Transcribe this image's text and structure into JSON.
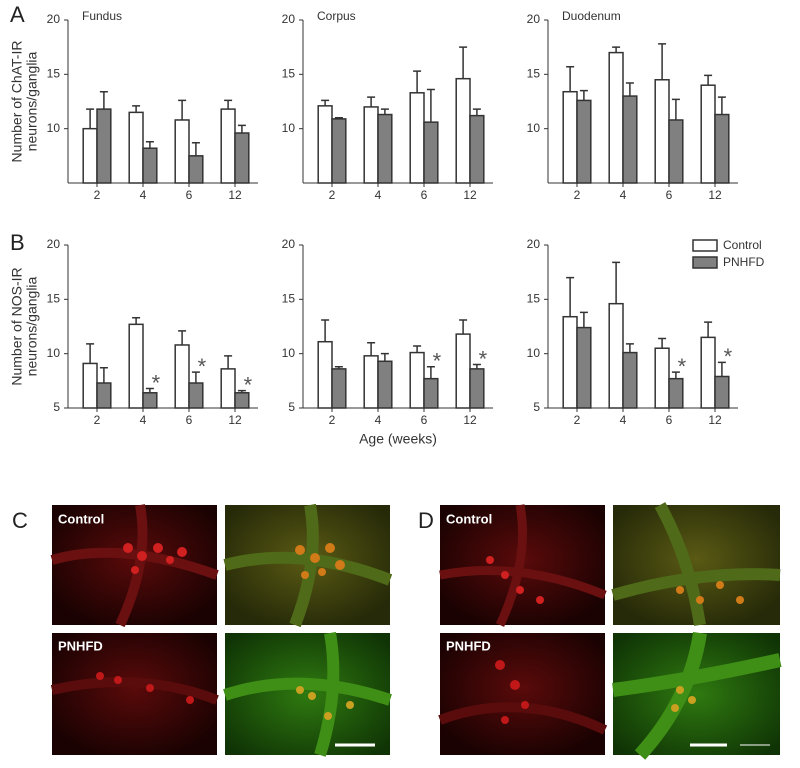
{
  "panel_labels": [
    "A",
    "B",
    "C",
    "D"
  ],
  "chart_data": [
    {
      "type": "bar",
      "title": "Fundus",
      "ylabel": [
        "Number of ChAT-IR",
        "neurons/ganglia"
      ],
      "categories": [
        "2",
        "4",
        "6",
        "12"
      ],
      "series": [
        {
          "color": "#ffffff",
          "values": [
            10.0,
            11.5,
            10.8,
            11.8
          ],
          "errors": [
            1.8,
            0.6,
            1.8,
            0.8
          ]
        },
        {
          "color": "#808080",
          "values": [
            11.8,
            8.2,
            7.5,
            9.6
          ],
          "errors": [
            1.6,
            0.6,
            1.2,
            0.7
          ]
        }
      ],
      "ylim": [
        5,
        20
      ],
      "yticks": [
        10,
        15,
        20
      ]
    },
    {
      "type": "bar",
      "title": "Corpus",
      "categories": [
        "2",
        "4",
        "6",
        "12"
      ],
      "series": [
        {
          "color": "#ffffff",
          "values": [
            12.1,
            12.0,
            13.3,
            14.6
          ],
          "errors": [
            0.5,
            0.9,
            2.0,
            2.9
          ]
        },
        {
          "color": "#808080",
          "values": [
            10.9,
            11.3,
            10.6,
            11.2
          ],
          "errors": [
            0.1,
            0.5,
            3.0,
            0.6
          ]
        }
      ],
      "ylim": [
        5,
        20
      ],
      "yticks": [
        10,
        15,
        20
      ]
    },
    {
      "type": "bar",
      "title": "Duodenum",
      "categories": [
        "2",
        "4",
        "6",
        "12"
      ],
      "series": [
        {
          "color": "#ffffff",
          "values": [
            13.4,
            17.0,
            14.5,
            14.0
          ],
          "errors": [
            2.3,
            0.5,
            3.3,
            0.9
          ]
        },
        {
          "color": "#808080",
          "values": [
            12.6,
            13.0,
            10.8,
            11.3
          ],
          "errors": [
            0.9,
            1.2,
            1.9,
            1.6
          ]
        }
      ],
      "ylim": [
        5,
        20
      ],
      "yticks": [
        10,
        15,
        20
      ]
    },
    {
      "type": "bar",
      "ylabel": [
        "Number of NOS-IR",
        "neurons/ganglia"
      ],
      "categories": [
        "2",
        "4",
        "6",
        "12"
      ],
      "series": [
        {
          "color": "#ffffff",
          "values": [
            9.1,
            12.7,
            10.8,
            8.6
          ],
          "errors": [
            1.8,
            0.6,
            1.3,
            1.2
          ]
        },
        {
          "color": "#808080",
          "values": [
            7.3,
            6.4,
            7.3,
            6.4
          ],
          "errors": [
            1.4,
            0.4,
            1.0,
            0.2
          ]
        }
      ],
      "ylim": [
        5,
        20
      ],
      "yticks": [
        5,
        10,
        15,
        20
      ],
      "annotations": [
        {
          "x": "4",
          "text": "*"
        },
        {
          "x": "6",
          "text": "*"
        },
        {
          "x": "12",
          "text": "*"
        }
      ]
    },
    {
      "type": "bar",
      "xlabel": "Age (weeks)",
      "categories": [
        "2",
        "4",
        "6",
        "12"
      ],
      "series": [
        {
          "color": "#ffffff",
          "values": [
            11.1,
            9.8,
            10.1,
            11.8
          ],
          "errors": [
            2.0,
            1.2,
            0.6,
            1.3
          ]
        },
        {
          "color": "#808080",
          "values": [
            8.6,
            9.3,
            7.7,
            8.6
          ],
          "errors": [
            0.2,
            0.7,
            1.1,
            0.4
          ]
        }
      ],
      "ylim": [
        5,
        20
      ],
      "yticks": [
        5,
        10,
        15,
        20
      ],
      "annotations": [
        {
          "x": "6",
          "text": "*"
        },
        {
          "x": "12",
          "text": "*"
        }
      ]
    },
    {
      "type": "bar",
      "categories": [
        "2",
        "4",
        "6",
        "12"
      ],
      "legend": "upper right",
      "series": [
        {
          "name": "Control",
          "color": "#ffffff",
          "values": [
            13.4,
            14.6,
            10.5,
            11.5
          ],
          "errors": [
            3.6,
            3.8,
            0.9,
            1.4
          ]
        },
        {
          "name": "PNHFD",
          "color": "#808080",
          "values": [
            12.4,
            10.1,
            7.7,
            7.9
          ],
          "errors": [
            1.4,
            0.8,
            0.6,
            1.3
          ]
        }
      ],
      "ylim": [
        5,
        20
      ],
      "yticks": [
        5,
        10,
        15,
        20
      ],
      "annotations": [
        {
          "x": "6",
          "text": "*"
        },
        {
          "x": "12",
          "text": "*"
        }
      ]
    }
  ],
  "micrographs": {
    "C": {
      "top_label": "Control",
      "bottom_label": "PNHFD"
    },
    "D": {
      "top_label": "Control",
      "bottom_label": "PNHFD"
    }
  }
}
